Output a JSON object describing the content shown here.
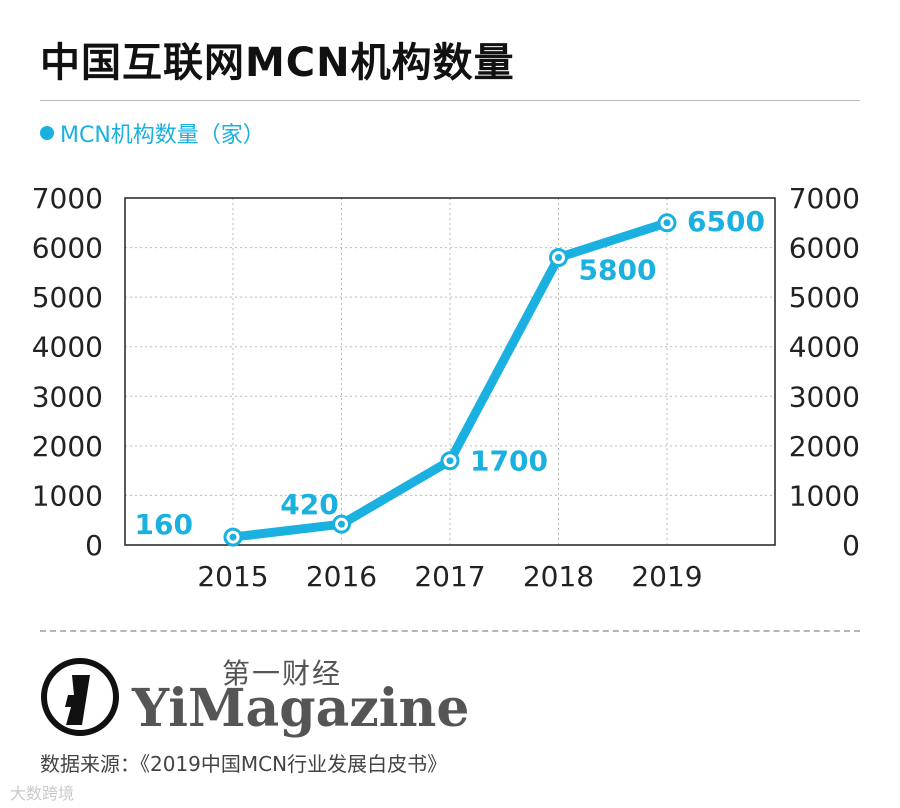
{
  "title": "中国互联网MCN机构数量",
  "legend_label": "MCN机构数量（家）",
  "brand": {
    "cn": "第一财经",
    "en": "YiMagazine"
  },
  "source": "数据来源：《2019中国MCN行业发展白皮书》",
  "watermark": "大数跨境",
  "colors": {
    "series": "#1ab0e0",
    "label": "#1ab0e0",
    "axis": "#222222",
    "grid": "#bbbbbb"
  },
  "chart_data": {
    "type": "line",
    "title": "中国互联网MCN机构数量",
    "xlabel": "",
    "ylabel": "",
    "categories": [
      "2015",
      "2016",
      "2017",
      "2018",
      "2019"
    ],
    "series": [
      {
        "name": "MCN机构数量（家）",
        "values": [
          160,
          420,
          1700,
          5800,
          6500
        ]
      }
    ],
    "data_labels": [
      "160",
      "420",
      "1700",
      "5800",
      "6500"
    ],
    "ylim": [
      0,
      7000
    ],
    "yticks": [
      0,
      1000,
      2000,
      3000,
      4000,
      5000,
      6000,
      7000
    ],
    "ytick_labels": [
      "0",
      "1000",
      "2000",
      "3000",
      "4000",
      "5000",
      "6000",
      "7000"
    ],
    "dual_y_axis": true,
    "grid": "dotted",
    "legend": "top-left"
  }
}
